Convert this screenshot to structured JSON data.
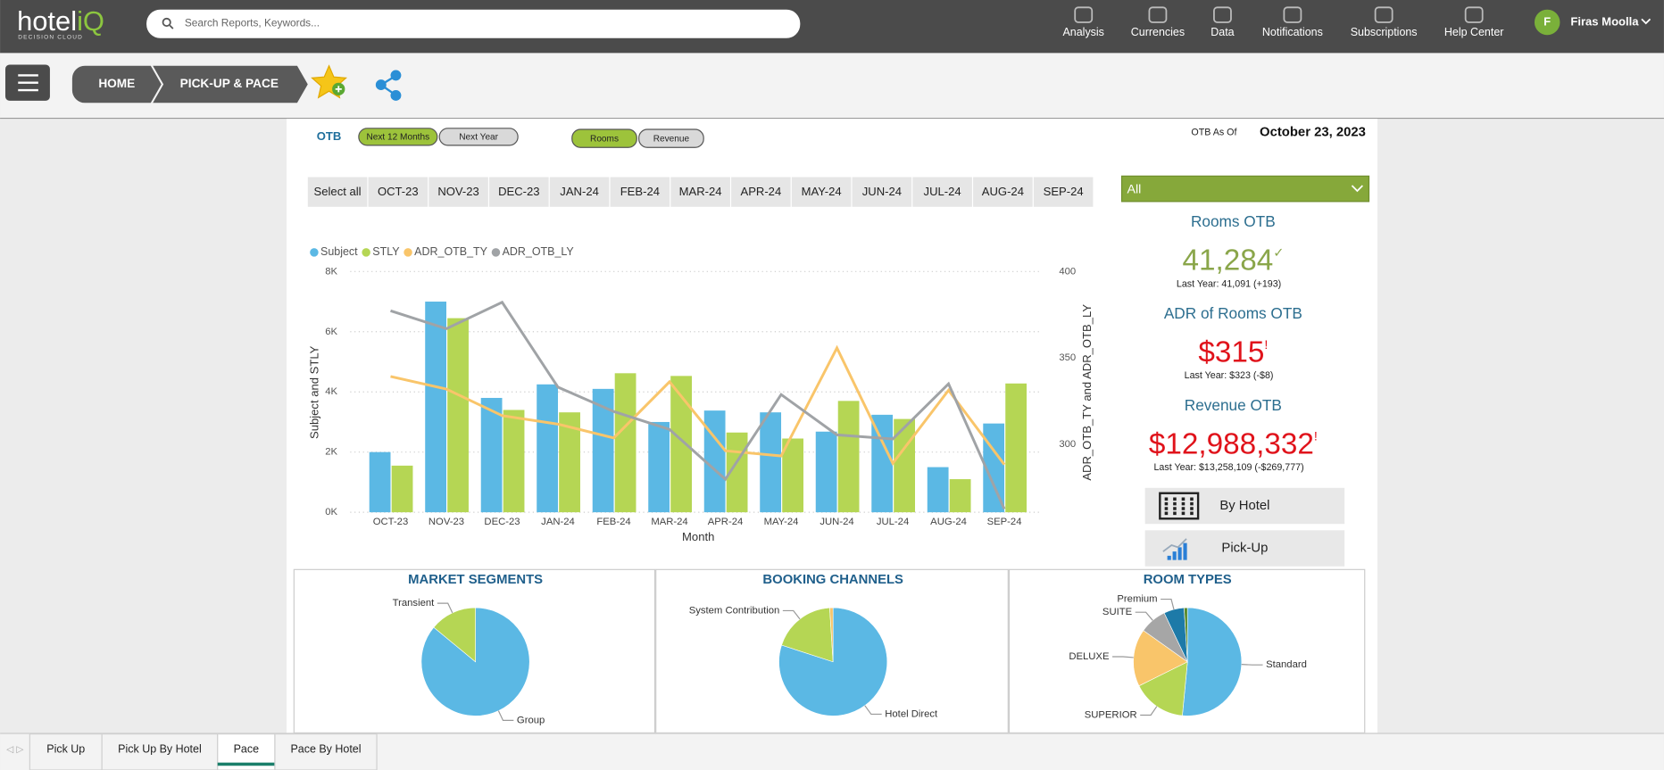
{
  "header": {
    "logo": "hotel",
    "logo_accent": "iQ",
    "logo_sub": "DECISION CLOUD",
    "search_placeholder": "Search Reports, Keywords...",
    "nav": [
      "Analysis",
      "Currencies",
      "Data",
      "Notifications",
      "Subscriptions",
      "Help Center"
    ],
    "user_initial": "F",
    "user_name": "Firas Moolla"
  },
  "breadcrumb": [
    "HOME",
    "PICK-UP & PACE"
  ],
  "filters": {
    "otb_label": "OTB",
    "period_buttons": [
      "Next 12 Months",
      "Next Year"
    ],
    "measure_buttons": [
      "Rooms",
      "Revenue"
    ],
    "as_of_label": "OTB As Of",
    "as_of_date": "October 23, 2023",
    "months": [
      "Select all",
      "OCT-23",
      "NOV-23",
      "DEC-23",
      "JAN-24",
      "FEB-24",
      "MAR-24",
      "APR-24",
      "MAY-24",
      "JUN-24",
      "JUL-24",
      "AUG-24",
      "SEP-24"
    ],
    "dropdown": "All"
  },
  "chart_data": [
    {
      "type": "combo",
      "x_label": "Month",
      "y_label": "Subject and STLY",
      "y2_label": "ADR_OTB_TY and ADR_OTB_LY",
      "categories": [
        "OCT-23",
        "NOV-23",
        "DEC-23",
        "JAN-24",
        "FEB-24",
        "MAR-24",
        "APR-24",
        "MAY-24",
        "JUN-24",
        "JUL-24",
        "AUG-24",
        "SEP-24"
      ],
      "series": [
        {
          "name": "Subject",
          "type": "bar",
          "color": "#5bb8e4",
          "values": [
            2000,
            7000,
            3800,
            4250,
            4100,
            3000,
            3380,
            3320,
            2680,
            3240,
            1500,
            2950
          ]
        },
        {
          "name": "STLY",
          "type": "bar",
          "color": "#b5d654",
          "values": [
            1550,
            6450,
            3400,
            3320,
            4620,
            4530,
            2650,
            2450,
            3700,
            3100,
            1100,
            4280
          ]
        },
        {
          "name": "ADR_OTB_TY",
          "type": "line",
          "axis": "y2",
          "color": "#f9c56a",
          "values": [
            339.3,
            332,
            316.6,
            311.7,
            303.7,
            336.2,
            296.3,
            293.3,
            355.8,
            289,
            331.3,
            288.3
          ]
        },
        {
          "name": "ADR_OTB_LY",
          "type": "line",
          "axis": "y2",
          "color": "#a0a3a6",
          "values": [
            377.3,
            366.9,
            382.2,
            333.1,
            319,
            308.6,
            279.8,
            328.8,
            305.5,
            303.1,
            335,
            262.6
          ]
        }
      ],
      "ylim": [
        0,
        8000
      ],
      "yticks": [
        {
          "value": 0,
          "label": "0K"
        },
        {
          "value": 2000,
          "label": "2K"
        },
        {
          "value": 4000,
          "label": "4K"
        },
        {
          "value": 6000,
          "label": "6K"
        },
        {
          "value": 8000,
          "label": "8K"
        }
      ],
      "y2lim": [
        260.7,
        400
      ],
      "y2ticks": [
        300,
        350,
        400
      ],
      "grid": true
    },
    {
      "type": "pie",
      "title": "MARKET SEGMENTS",
      "categories": [
        "Group",
        "Transient"
      ],
      "values": [
        86,
        14
      ],
      "colors": [
        "#5bb8e4",
        "#b5d654"
      ]
    },
    {
      "type": "pie",
      "title": "BOOKING CHANNELS",
      "categories": [
        "Hotel Direct",
        "System Contribution",
        null
      ],
      "values": [
        80,
        19,
        1
      ],
      "colors": [
        "#5bb8e4",
        "#b5d654",
        "#f9c56a"
      ]
    },
    {
      "type": "pie",
      "title": "ROOM TYPES",
      "categories": [
        "Standard",
        "SUPERIOR",
        "DELUXE",
        "SUITE",
        "Premium",
        null
      ],
      "values": [
        51,
        16,
        17,
        8,
        6,
        1
      ],
      "colors": [
        "#5bb8e4",
        "#b5d654",
        "#f9c56a",
        "#a6a6a6",
        "#1d7aa8",
        "#5a8a2a"
      ]
    }
  ],
  "kpis": [
    {
      "title": "Rooms OTB",
      "value": "41,284",
      "status": "✓",
      "note": "Last Year: 41,091 (+193)",
      "color": "#8aa64a"
    },
    {
      "title": "ADR of Rooms OTB",
      "value": "$315",
      "status": "!",
      "note": "Last Year: $323 (-$8)",
      "color": "#e0131b"
    },
    {
      "title": "Revenue OTB",
      "value": "$12,988,332",
      "status": "!",
      "note": "Last Year: $13,258,109 (-$269,777)",
      "color": "#e0131b"
    }
  ],
  "buttons": [
    "By Hotel",
    "Pick-Up"
  ],
  "tabs": [
    "Pick Up",
    "Pick Up By Hotel",
    "Pace",
    "Pace By Hotel"
  ],
  "active_tab": "Pace"
}
